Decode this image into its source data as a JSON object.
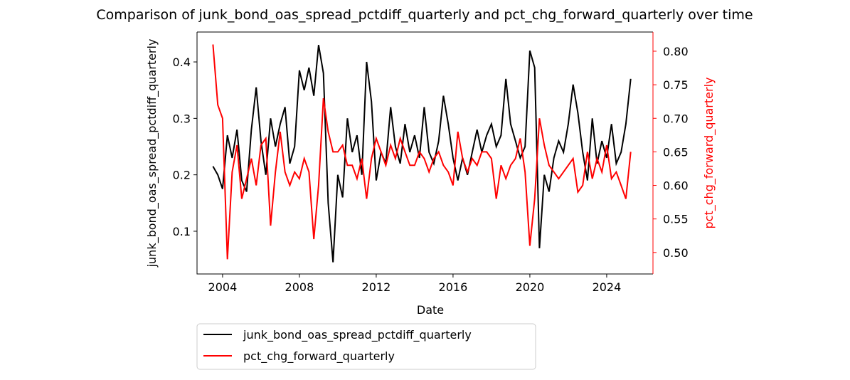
{
  "chart_data": {
    "type": "line",
    "title": "Comparison of junk_bond_oas_spread_pctdiff_quarterly and pct_chg_forward_quarterly over time",
    "x_label": "Date",
    "y_label": "junk_bond_oas_spread_pctdiff_quarterly",
    "y2_label": "pct_chg_forward_quarterly",
    "x": [
      2003.5,
      2003.75,
      2004,
      2004.25,
      2004.5,
      2004.75,
      2005,
      2005.25,
      2005.5,
      2005.75,
      2006,
      2006.25,
      2006.5,
      2006.75,
      2007,
      2007.25,
      2007.5,
      2007.75,
      2008,
      2008.25,
      2008.5,
      2008.75,
      2009,
      2009.25,
      2009.5,
      2009.75,
      2010,
      2010.25,
      2010.5,
      2010.75,
      2011,
      2011.25,
      2011.5,
      2011.75,
      2012,
      2012.25,
      2012.5,
      2012.75,
      2013,
      2013.25,
      2013.5,
      2013.75,
      2014,
      2014.25,
      2014.5,
      2014.75,
      2015,
      2015.25,
      2015.5,
      2015.75,
      2016,
      2016.25,
      2016.5,
      2016.75,
      2017,
      2017.25,
      2017.5,
      2017.75,
      2018,
      2018.25,
      2018.5,
      2018.75,
      2019,
      2019.25,
      2019.5,
      2019.75,
      2020,
      2020.25,
      2020.5,
      2020.75,
      2021,
      2021.25,
      2021.5,
      2021.75,
      2022,
      2022.25,
      2022.5,
      2022.75,
      2023,
      2023.25,
      2023.5,
      2023.75,
      2024,
      2024.25,
      2024.5,
      2024.75,
      2025,
      2025.25
    ],
    "series": [
      {
        "name": "junk_bond_oas_spread_pctdiff_quarterly",
        "color": "#000000",
        "axis": "y",
        "values": [
          0.215,
          0.2,
          0.175,
          0.27,
          0.23,
          0.28,
          0.19,
          0.17,
          0.28,
          0.355,
          0.26,
          0.2,
          0.3,
          0.25,
          0.29,
          0.32,
          0.22,
          0.25,
          0.385,
          0.35,
          0.39,
          0.34,
          0.43,
          0.38,
          0.15,
          0.045,
          0.2,
          0.16,
          0.3,
          0.24,
          0.27,
          0.2,
          0.4,
          0.33,
          0.19,
          0.24,
          0.22,
          0.32,
          0.25,
          0.22,
          0.29,
          0.24,
          0.27,
          0.23,
          0.32,
          0.24,
          0.22,
          0.26,
          0.34,
          0.29,
          0.23,
          0.19,
          0.23,
          0.2,
          0.24,
          0.28,
          0.24,
          0.27,
          0.29,
          0.25,
          0.27,
          0.37,
          0.29,
          0.26,
          0.23,
          0.25,
          0.42,
          0.39,
          0.07,
          0.2,
          0.17,
          0.23,
          0.26,
          0.24,
          0.29,
          0.36,
          0.31,
          0.24,
          0.19,
          0.3,
          0.22,
          0.26,
          0.23,
          0.29,
          0.22,
          0.24,
          0.29,
          0.37
        ]
      },
      {
        "name": "pct_chg_forward_quarterly",
        "color": "#ff0000",
        "axis": "y2",
        "values": [
          0.81,
          0.72,
          0.7,
          0.49,
          0.62,
          0.66,
          0.58,
          0.61,
          0.64,
          0.6,
          0.66,
          0.67,
          0.54,
          0.62,
          0.68,
          0.62,
          0.6,
          0.62,
          0.61,
          0.64,
          0.62,
          0.52,
          0.6,
          0.73,
          0.68,
          0.65,
          0.65,
          0.66,
          0.63,
          0.63,
          0.61,
          0.64,
          0.58,
          0.64,
          0.67,
          0.65,
          0.63,
          0.66,
          0.64,
          0.67,
          0.65,
          0.63,
          0.63,
          0.65,
          0.64,
          0.62,
          0.64,
          0.65,
          0.63,
          0.62,
          0.6,
          0.68,
          0.64,
          0.62,
          0.64,
          0.63,
          0.65,
          0.65,
          0.64,
          0.58,
          0.63,
          0.61,
          0.63,
          0.64,
          0.67,
          0.62,
          0.51,
          0.58,
          0.7,
          0.66,
          0.63,
          0.62,
          0.61,
          0.62,
          0.63,
          0.64,
          0.59,
          0.6,
          0.65,
          0.61,
          0.64,
          0.62,
          0.66,
          0.61,
          0.62,
          0.6,
          0.58,
          0.65
        ]
      }
    ],
    "xlim": [
      2002.67,
      2026.41
    ],
    "xticks": [
      2004,
      2008,
      2012,
      2016,
      2020,
      2024
    ],
    "ylim": [
      0.0243,
      0.453
    ],
    "yticks": [
      0.1,
      0.2,
      0.3,
      0.4
    ],
    "y2lim": [
      0.468,
      0.8286
    ],
    "y2ticks": [
      {
        "value": 0.5,
        "label": "0.50"
      },
      {
        "value": 0.55,
        "label": "0.55"
      },
      {
        "value": 0.6,
        "label": "0.60"
      },
      {
        "value": 0.65,
        "label": "0.65"
      },
      {
        "value": 0.7,
        "label": "0.70"
      },
      {
        "value": 0.75,
        "label": "0.75"
      },
      {
        "value": 0.8,
        "label": "0.80"
      }
    ],
    "y2_color": "#ff0000",
    "legend": "below"
  }
}
